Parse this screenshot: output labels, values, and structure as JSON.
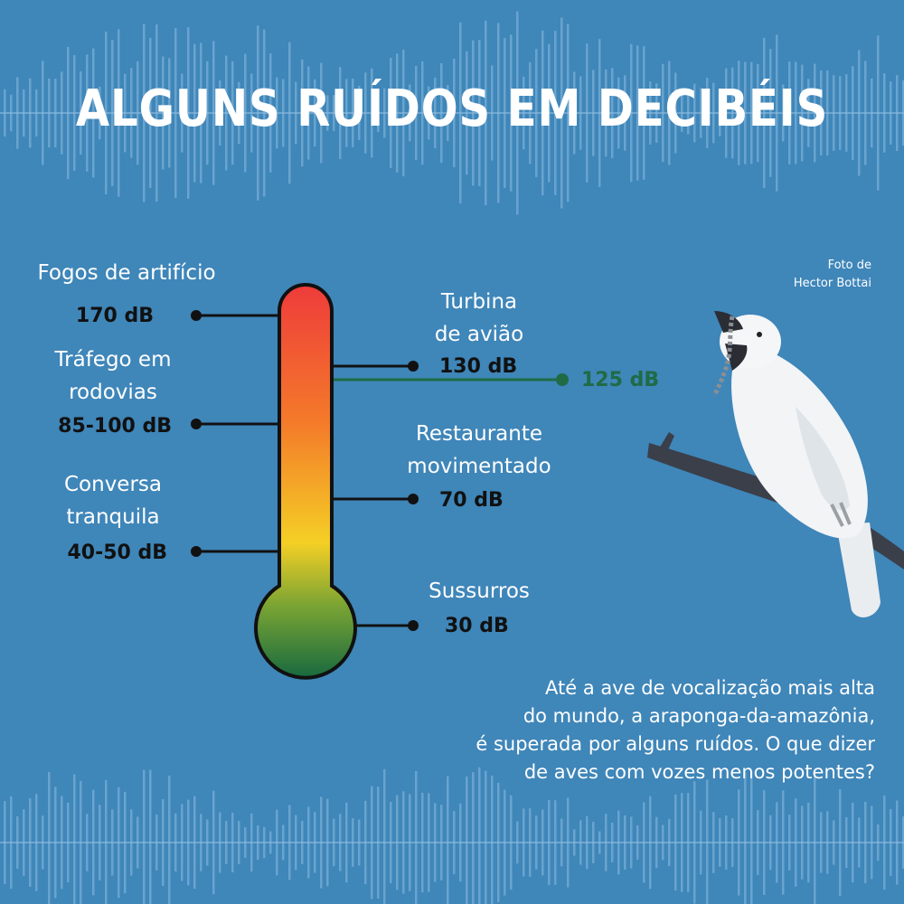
{
  "title": "ALGUNS RUÍDOS EM DECIBÉIS",
  "colors": {
    "background": "#3f86b9",
    "highlight": "#1f6b46",
    "thermo_top": "#ee3b3b",
    "thermo_mid": "#f4cf25",
    "thermo_bottom": "#1a6b3f"
  },
  "left_items": [
    {
      "label_lines": [
        "Fogos de artifício"
      ],
      "value": "170 dB"
    },
    {
      "label_lines": [
        "Tráfego em",
        "rodovias"
      ],
      "value": "85-100 dB"
    },
    {
      "label_lines": [
        "Conversa",
        "tranquila"
      ],
      "value": "40-50 dB"
    }
  ],
  "right_items": [
    {
      "label_lines": [
        "Turbina",
        "de avião"
      ],
      "value": "130 dB"
    },
    {
      "label_lines": [
        "Restaurante",
        "movimentado"
      ],
      "value": "70 dB"
    },
    {
      "label_lines": [
        "Sussurros"
      ],
      "value": "30 dB"
    }
  ],
  "highlight_value": "125 dB",
  "photo_credit": [
    "Foto de",
    "Hector Bottai"
  ],
  "caption_lines": [
    "Até a ave de vocalização mais alta",
    "do mundo, a araponga-da-amazônia,",
    "é superada por alguns ruídos. O que dizer",
    "de aves com vozes menos potentes?"
  ]
}
